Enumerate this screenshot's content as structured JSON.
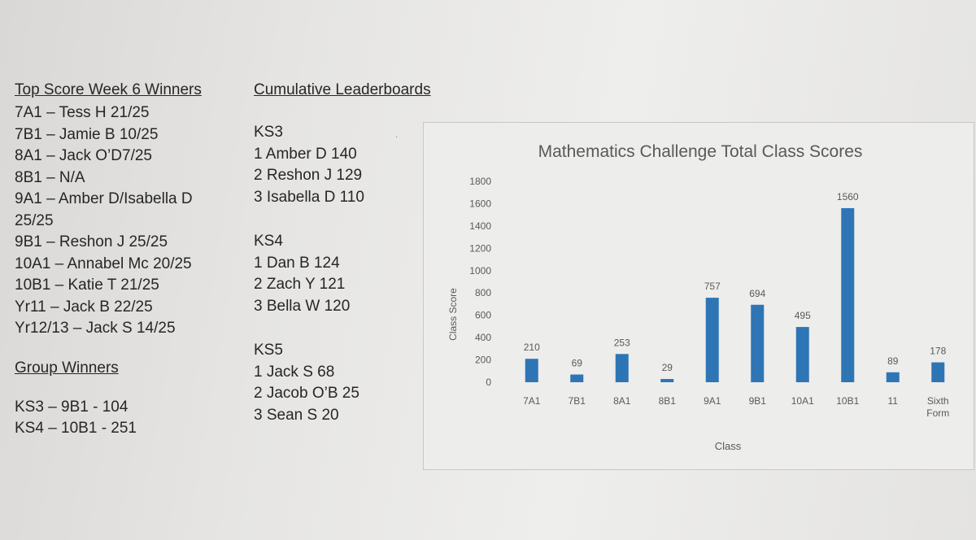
{
  "left": {
    "heading": "Top Score Week 6 Winners",
    "winners": [
      "7A1 – Tess H 21/25",
      "7B1 – Jamie B 10/25",
      "8A1 – Jack O’D7/25",
      "8B1 – N/A",
      "9A1 – Amber D/Isabella D",
      "25/25",
      "9B1 – Reshon J 25/25",
      "10A1 – Annabel Mc 20/25",
      "10B1 –  Katie T 21/25",
      "Yr11 – Jack B 22/25",
      "Yr12/13 – Jack S 14/25"
    ],
    "group_heading": "Group Winners",
    "groups": [
      "KS3 – 9B1 - 104",
      "KS4 – 10B1 - 251"
    ]
  },
  "middle": {
    "heading": "Cumulative Leaderboards",
    "ks3": {
      "label": "KS3",
      "entries": [
        "1 Amber D 140",
        "2 Reshon J 129",
        "3 Isabella D 110"
      ]
    },
    "ks4": {
      "label": "KS4",
      "entries": [
        "1 Dan B 124",
        "2 Zach Y 121",
        "3 Bella W 120"
      ]
    },
    "ks5": {
      "label": "KS5",
      "entries": [
        "1 Jack S 68",
        "2 Jacob O’B 25",
        "3 Sean S 20"
      ]
    }
  },
  "chart_data": {
    "type": "bar",
    "title": "Mathematics Challenge Total Class Scores",
    "xlabel": "Class",
    "ylabel": "Class Score",
    "categories": [
      "7A1",
      "7B1",
      "8A1",
      "8B1",
      "9A1",
      "9B1",
      "10A1",
      "10B1",
      "11",
      "Sixth Form"
    ],
    "values": [
      210,
      69,
      253,
      29,
      757,
      694,
      495,
      1560,
      89,
      178
    ],
    "ylim": [
      0,
      1800
    ],
    "yticks": [
      0,
      200,
      400,
      600,
      800,
      1000,
      1200,
      1400,
      1600,
      1800
    ],
    "bar_color": "#2e75b6",
    "grid": false,
    "legend": "none"
  }
}
